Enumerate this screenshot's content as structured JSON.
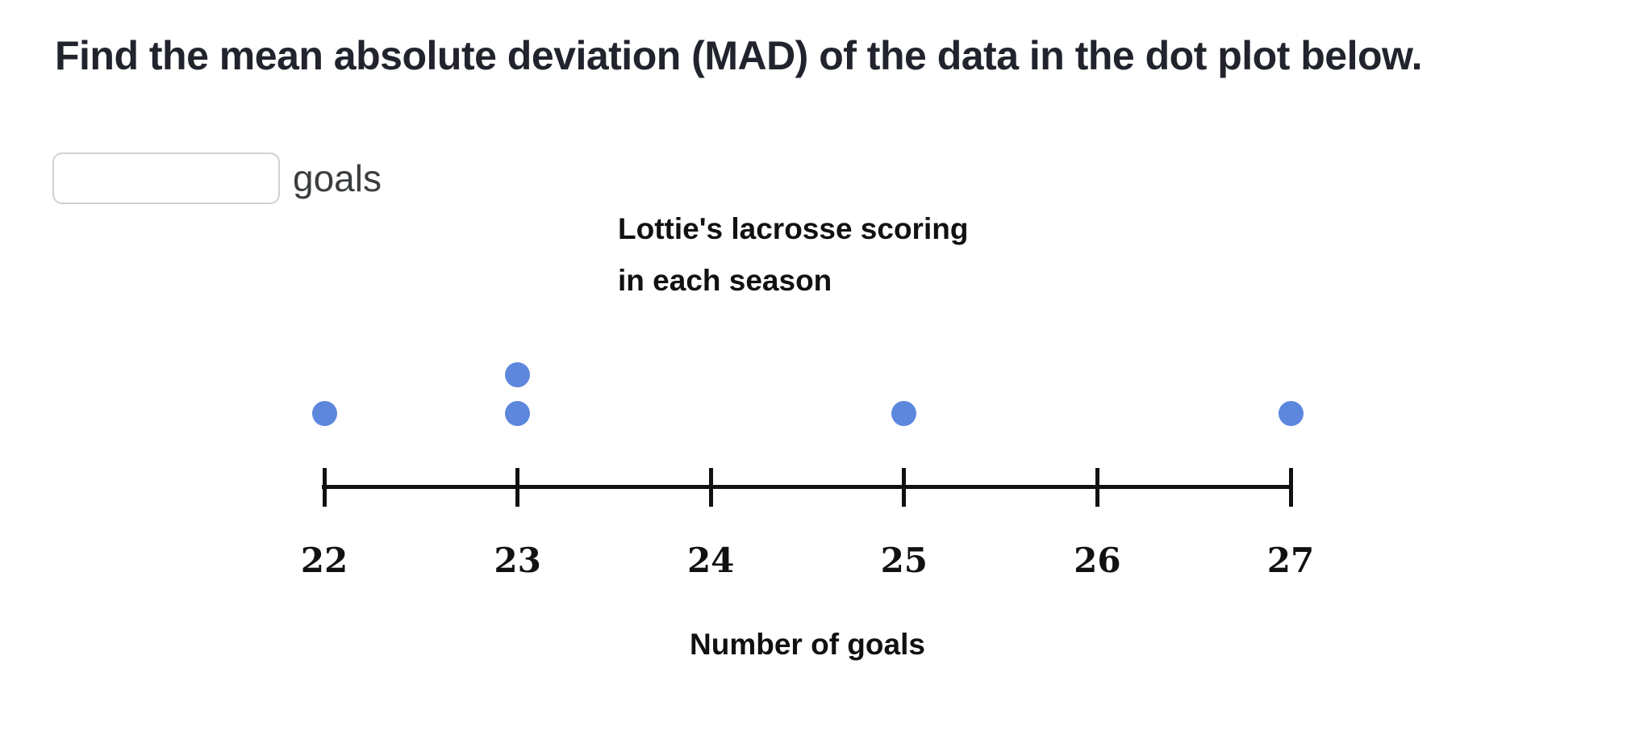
{
  "question": {
    "title": "Find the mean absolute deviation (MAD) of the data in the dot plot below."
  },
  "answer": {
    "input_value": "",
    "unit_label": "goals"
  },
  "colors": {
    "question_text": "#21242c",
    "chart_text": "#111111",
    "axis": "#111111",
    "dot": "#5d87dd",
    "input_border": "#cfd1d4"
  },
  "chart_data": {
    "type": "dot_plot",
    "title": "Lottie's lacrosse scoring in each season",
    "title_lines": [
      "Lottie's lacrosse scoring",
      "in each season"
    ],
    "xlabel": "Number of goals",
    "x_range": [
      22,
      27
    ],
    "x_ticks": [
      22,
      23,
      24,
      25,
      26,
      27
    ],
    "values": [
      22,
      23,
      23,
      25,
      27
    ],
    "counts": {
      "22": 1,
      "23": 2,
      "24": 0,
      "25": 1,
      "26": 0,
      "27": 1
    },
    "dot_color": "#5d87dd",
    "grid": false,
    "legend": false
  }
}
